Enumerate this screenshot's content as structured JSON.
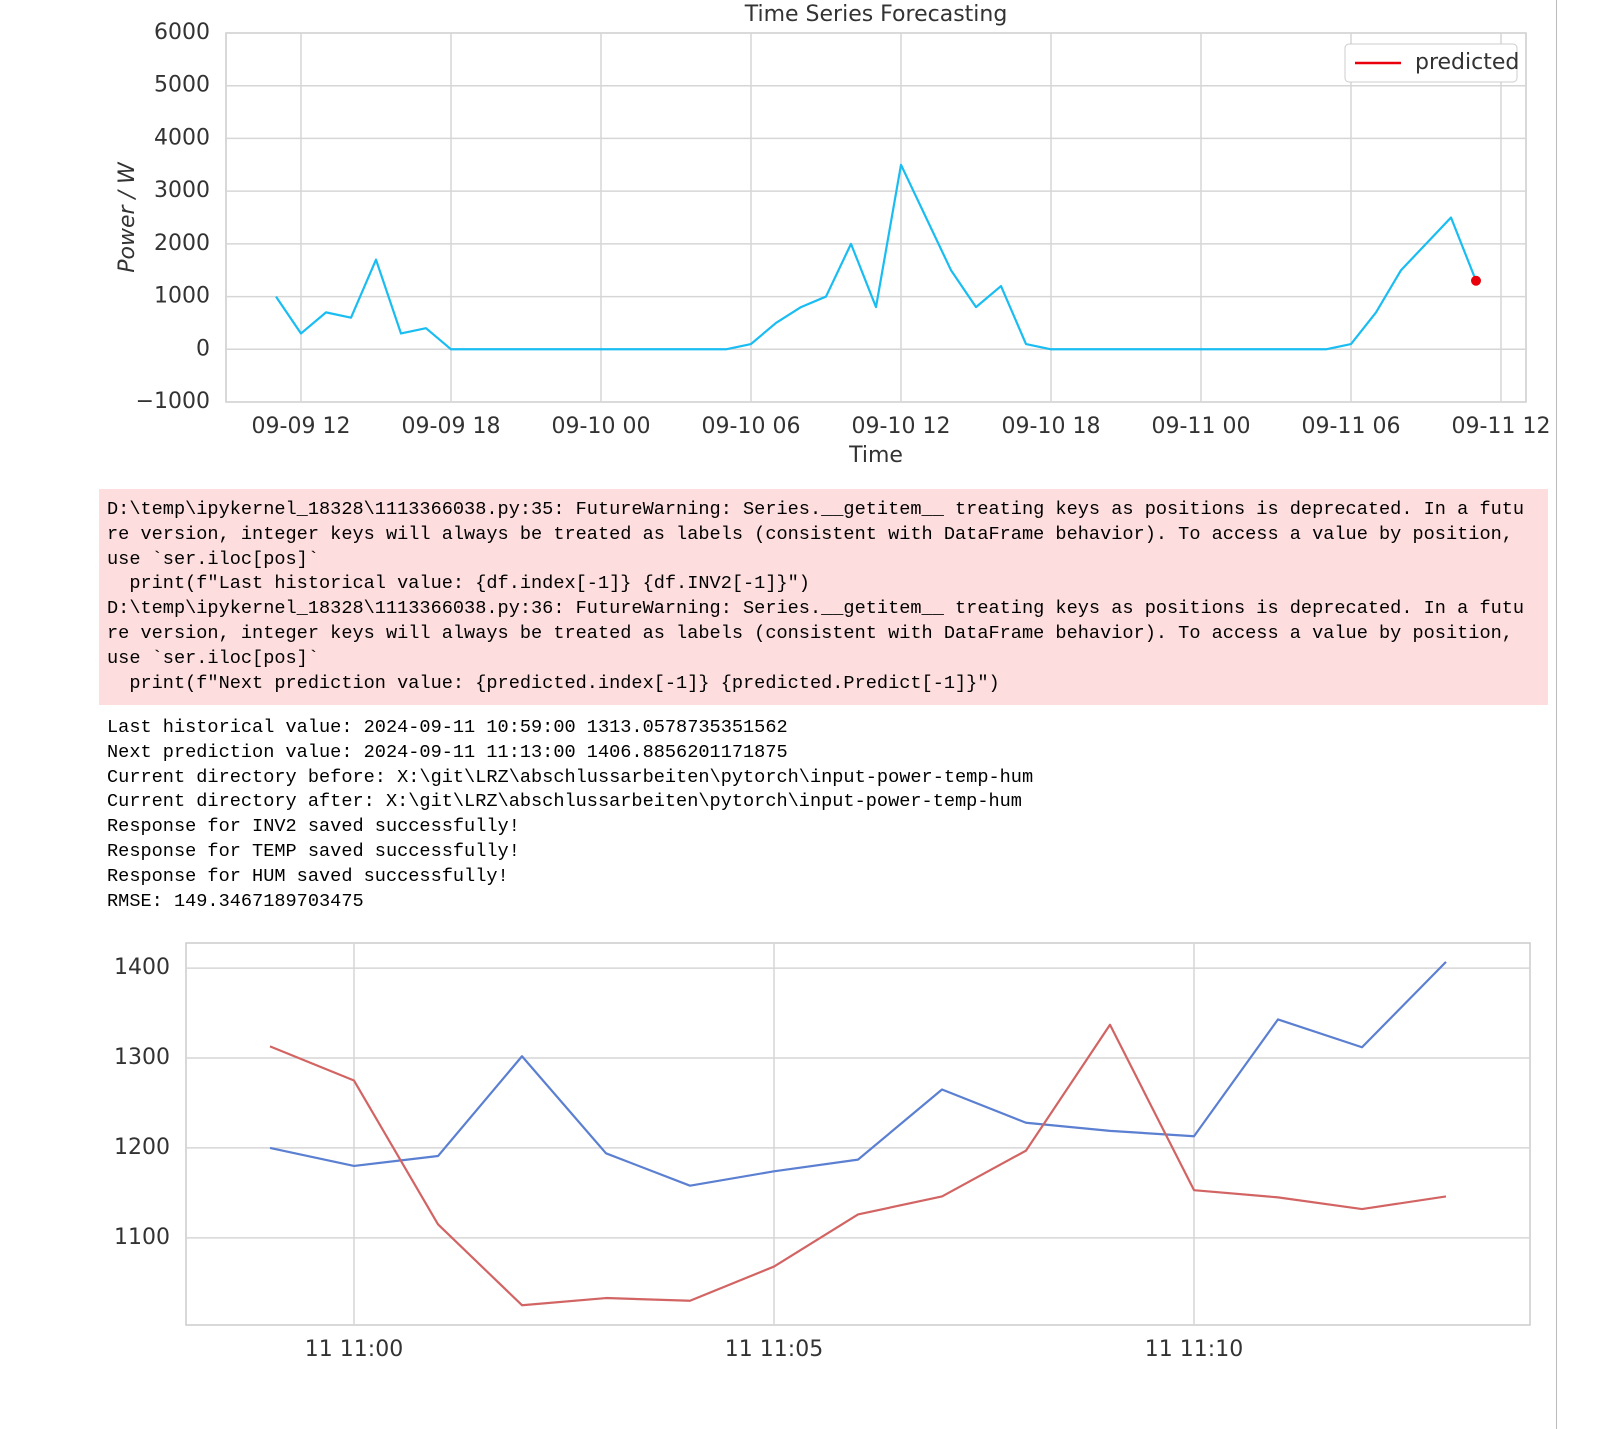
{
  "chart_data": [
    {
      "type": "line",
      "title": "Time Series Forecasting",
      "x_label": "Time",
      "y_label": "Power / W",
      "x": [
        "09-09 11",
        "09-09 12",
        "09-09 13",
        "09-09 14",
        "09-09 15",
        "09-09 16",
        "09-09 17",
        "09-09 18",
        "09-09 19",
        "09-09 20",
        "09-09 21",
        "09-09 22",
        "09-09 23",
        "09-10 00",
        "09-10 01",
        "09-10 02",
        "09-10 03",
        "09-10 04",
        "09-10 05",
        "09-10 06",
        "09-10 07",
        "09-10 08",
        "09-10 09",
        "09-10 10",
        "09-10 11",
        "09-10 12",
        "09-10 13",
        "09-10 14",
        "09-10 15",
        "09-10 16",
        "09-10 17",
        "09-10 18",
        "09-10 19",
        "09-10 20",
        "09-10 21",
        "09-10 22",
        "09-10 23",
        "09-11 00",
        "09-11 01",
        "09-11 02",
        "09-11 03",
        "09-11 04",
        "09-11 05",
        "09-11 06",
        "09-11 07",
        "09-11 08",
        "09-11 09",
        "09-11 10",
        "09-11 11"
      ],
      "series": [
        {
          "color": "#19bdf2",
          "values": [
            1000,
            300,
            700,
            600,
            1700,
            300,
            400,
            0,
            0,
            0,
            0,
            0,
            0,
            0,
            0,
            0,
            0,
            0,
            0,
            100,
            500,
            800,
            1000,
            2000,
            800,
            3500,
            2500,
            1500,
            800,
            1200,
            100,
            0,
            0,
            0,
            0,
            0,
            0,
            0,
            0,
            0,
            0,
            0,
            0,
            100,
            700,
            1500,
            2000,
            2500,
            1300
          ]
        },
        {
          "name": "predicted",
          "color": "#e8000b",
          "values": [
            null,
            null,
            null,
            null,
            null,
            null,
            null,
            null,
            null,
            null,
            null,
            null,
            null,
            null,
            null,
            null,
            null,
            null,
            null,
            null,
            null,
            null,
            null,
            null,
            null,
            null,
            null,
            null,
            null,
            null,
            null,
            null,
            null,
            null,
            null,
            null,
            null,
            null,
            null,
            null,
            null,
            null,
            null,
            null,
            null,
            null,
            null,
            null,
            1300
          ]
        }
      ],
      "xlim": [
        "09-09 09",
        "09-11 13"
      ],
      "xticks": [
        "09-09 12",
        "09-09 18",
        "09-10 00",
        "09-10 06",
        "09-10 12",
        "09-10 18",
        "09-11 00",
        "09-11 06",
        "09-11 12"
      ],
      "ylim": [
        -1000,
        6000
      ],
      "yticks": [
        {
          "value": -1000,
          "label": "−1000"
        },
        0,
        1000,
        2000,
        3000,
        4000,
        5000,
        6000
      ],
      "grid": true,
      "legend": "upper right"
    },
    {
      "type": "line",
      "x": [
        "11 10:59",
        "11 11:00",
        "11 11:01",
        "11 11:02",
        "11 11:03",
        "11 11:04",
        "11 11:05",
        "11 11:06",
        "11 11:07",
        "11 11:08",
        "11 11:09",
        "11 11:10",
        "11 11:11",
        "11 11:12",
        "11 11:13"
      ],
      "series": [
        {
          "color": "#5b7fd1",
          "values": [
            1200,
            1180,
            1191,
            1302,
            1194,
            1158,
            1174,
            1187,
            1265,
            1228,
            1219,
            1213,
            1343,
            1312,
            1407
          ]
        },
        {
          "color": "#d26464",
          "values": [
            1313,
            1275,
            1115,
            1025,
            1033,
            1030,
            1068,
            1126,
            1146,
            1197,
            1337,
            1153,
            1145,
            1132,
            1146
          ]
        }
      ],
      "xlim": [
        "11 10:58",
        "11 11:14"
      ],
      "xticks": [
        "11 11:00",
        "11 11:05",
        "11 11:10"
      ],
      "ylim": [
        1003,
        1428
      ],
      "yticks": [
        1100,
        1200,
        1300,
        1400
      ],
      "grid": true
    }
  ],
  "stderr": [
    "D:\\temp\\ipykernel_18328\\1113366038.py:35: FutureWarning: Series.__getitem__ treating keys as positions is deprecated. In a futu",
    "re version, integer keys will always be treated as labels (consistent with DataFrame behavior). To access a value by position,",
    "use `ser.iloc[pos]`",
    "  print(f\"Last historical value: {df.index[-1]} {df.INV2[-1]}\")",
    "D:\\temp\\ipykernel_18328\\1113366038.py:36: FutureWarning: Series.__getitem__ treating keys as positions is deprecated. In a futu",
    "re version, integer keys will always be treated as labels (consistent with DataFrame behavior). To access a value by position,",
    "use `ser.iloc[pos]`",
    "  print(f\"Next prediction value: {predicted.index[-1]} {predicted.Predict[-1]}\")"
  ],
  "stdout": [
    "Last historical value: 2024-09-11 10:59:00 1313.0578735351562",
    "Next prediction value: 2024-09-11 11:13:00 1406.8856201171875",
    "Current directory before: X:\\git\\LRZ\\abschlussarbeiten\\pytorch\\input-power-temp-hum",
    "Current directory after: X:\\git\\LRZ\\abschlussarbeiten\\pytorch\\input-power-temp-hum",
    "Response for INV2 saved successfully!",
    "Response for TEMP saved successfully!",
    "Response for HUM saved successfully!",
    "RMSE: 149.3467189703475"
  ]
}
